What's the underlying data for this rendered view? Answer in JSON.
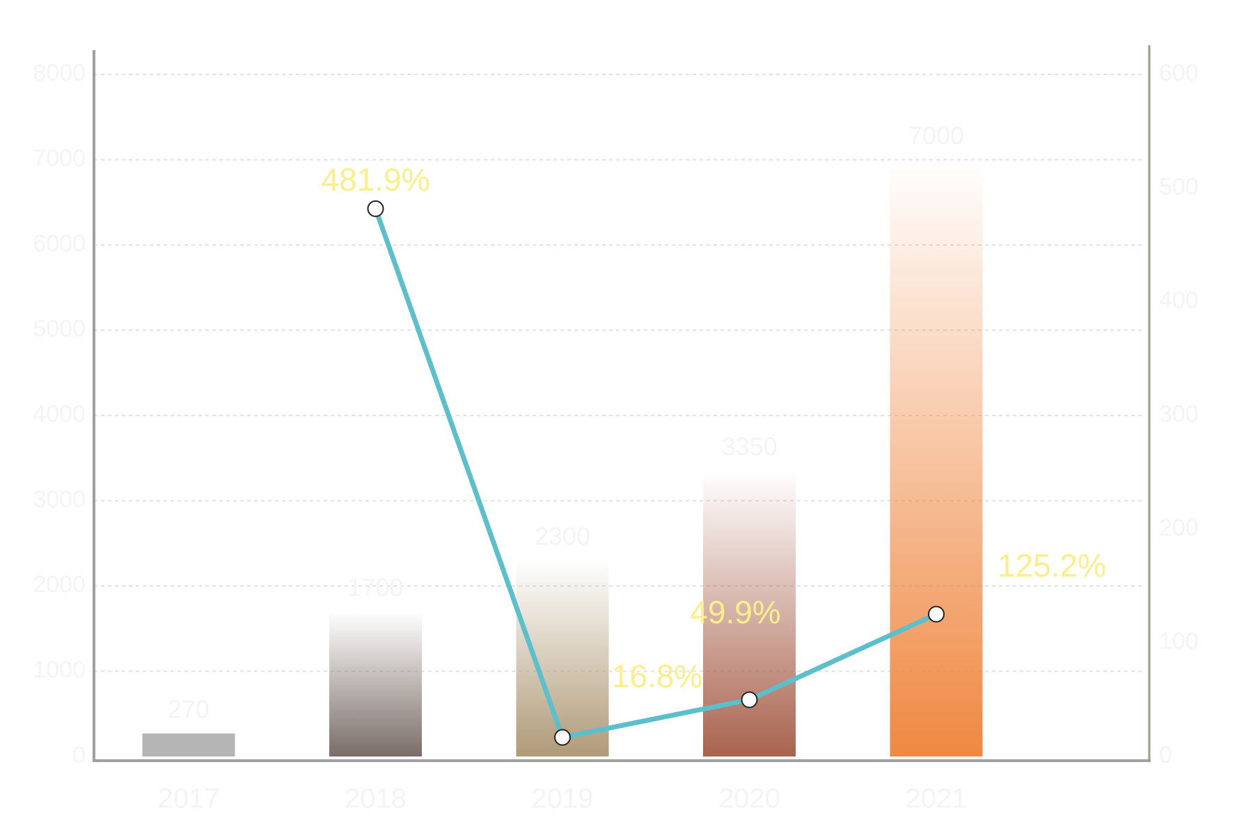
{
  "chart_data": {
    "type": "bar-line",
    "categories": [
      "2017",
      "2018",
      "2019",
      "2020",
      "2021"
    ],
    "series": [
      {
        "name": "Value",
        "type": "bar",
        "colors": [
          "#b5b5b5",
          "#7a6d68",
          "#b09a77",
          "#a9634e",
          "#ef8842"
        ],
        "values": [
          270,
          1700,
          2300,
          3350,
          7000
        ]
      },
      {
        "name": "Growth",
        "type": "line",
        "axis": "y2",
        "color": "#5bbfcc",
        "values": [
          null,
          481.9,
          16.8,
          49.9,
          125.2
        ],
        "value_labels": [
          null,
          "481.9%",
          "16.8%",
          "49.9%",
          "125.2%"
        ]
      }
    ],
    "ylim": [
      0,
      8000
    ],
    "yticks": [
      0,
      1000,
      2000,
      3000,
      4000,
      5000,
      6000,
      7000,
      8000
    ],
    "y2lim": [
      0,
      600
    ],
    "y2ticks": [
      0,
      100,
      200,
      300,
      400,
      500,
      600
    ],
    "grid": true
  }
}
